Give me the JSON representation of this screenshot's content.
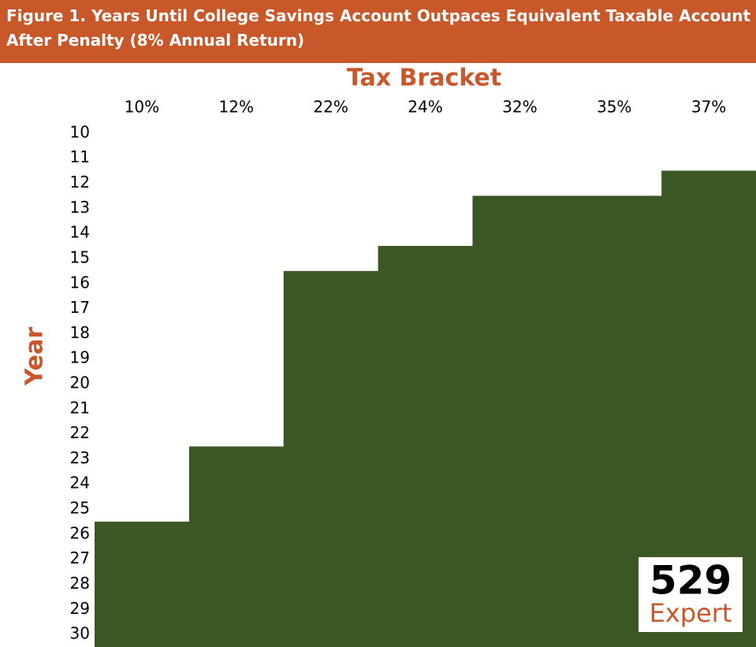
{
  "chart_data": {
    "type": "step",
    "title": "Figure 1. Years Until College Savings Account Outpaces Equivalent Taxable Account After Penalty (8% Annual Return)",
    "x_label": "Tax Bracket",
    "y_label": "Year",
    "categories": [
      "10%",
      "12%",
      "22%",
      "24%",
      "32%",
      "35%",
      "37%"
    ],
    "values": [
      26,
      23,
      16,
      15,
      13,
      13,
      12
    ],
    "color": "#3a5724",
    "ylim": [
      9.5,
      30.5
    ],
    "yticks": [
      10,
      11,
      12,
      13,
      14,
      15,
      16,
      17,
      18,
      19,
      20,
      21,
      22,
      23,
      24,
      25,
      26,
      27,
      28,
      29,
      30
    ],
    "grid": false
  },
  "logo": {
    "number": "529",
    "word": "Expert"
  }
}
